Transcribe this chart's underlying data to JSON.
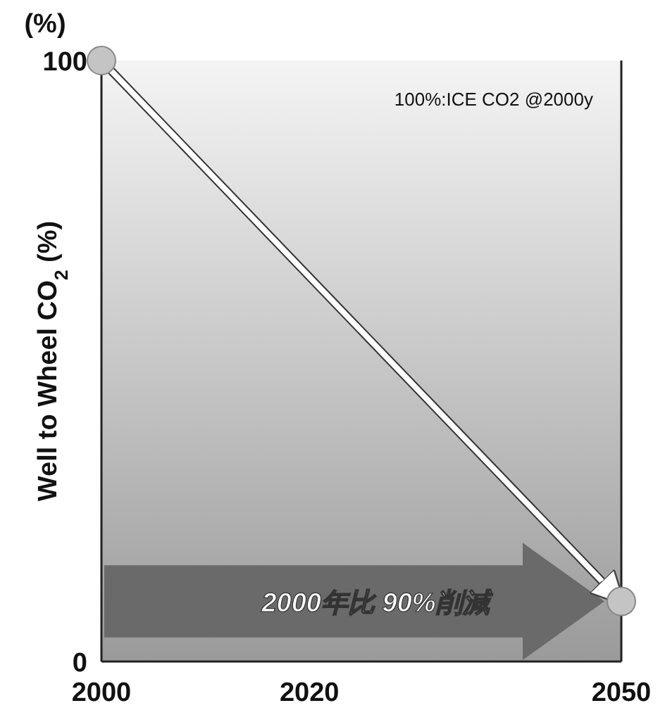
{
  "chart_data": {
    "type": "line",
    "x": [
      2000,
      2050
    ],
    "xlim": [
      2000,
      2050
    ],
    "xticks": [
      2000,
      2020,
      2050
    ],
    "ylim": [
      0,
      100
    ],
    "yticks": [
      0,
      100
    ],
    "ylabel": "Well to Wheel CO$_{2}$ (%)",
    "series": [
      {
        "color": "#ffffff",
        "values": [
          100,
          10
        ]
      }
    ],
    "marker": "circle",
    "annotations": [
      "(%)",
      "100%:ICE CO2 @2000y",
      "2000年比 90%削減"
    ]
  }
}
